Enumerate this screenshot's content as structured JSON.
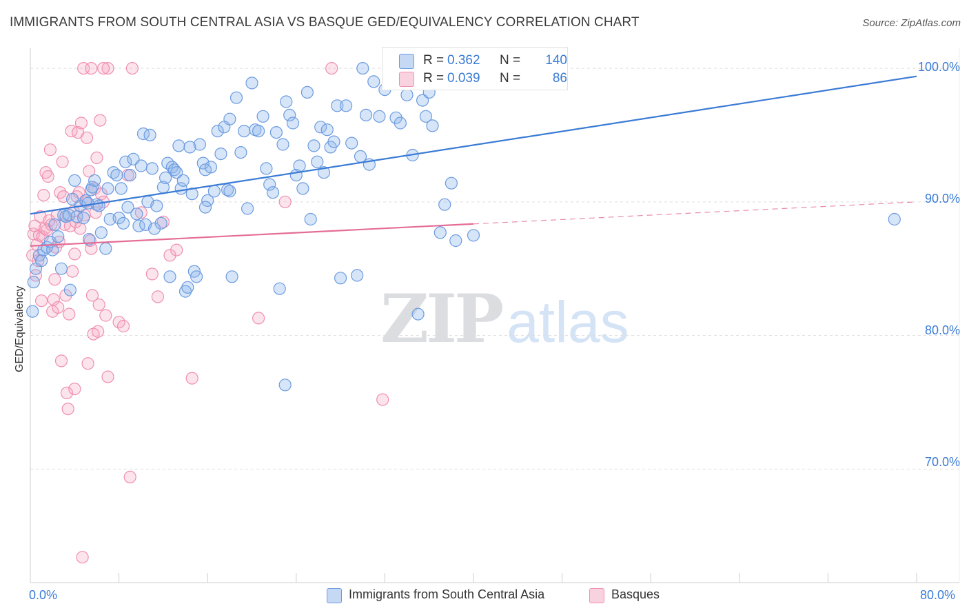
{
  "title": "IMMIGRANTS FROM SOUTH CENTRAL ASIA VS BASQUE GED/EQUIVALENCY CORRELATION CHART",
  "source_prefix": "Source: ",
  "source_name": "ZipAtlas.com",
  "watermark": {
    "zip": "ZIP",
    "atlas": "atlas"
  },
  "legend_top": {
    "rows": [
      {
        "r_label": "R =",
        "r_value": "0.362",
        "n_label": "N =",
        "n_value": "140",
        "color": "#8db4ea"
      },
      {
        "r_label": "R =",
        "r_value": "0.039",
        "n_label": "N =",
        "n_value": "86",
        "color": "#f4a5bf"
      }
    ]
  },
  "legend_bottom": [
    {
      "label": "Immigrants from South Central Asia",
      "color": "#8db4ea"
    },
    {
      "label": "Basques",
      "color": "#f4a5bf"
    }
  ],
  "colors": {
    "blue_stroke": "#6b9be0",
    "blue_fill": "rgba(141,180,234,0.35)",
    "blue_line": "#3a7bd5",
    "pink_stroke": "#f08fb0",
    "pink_fill": "rgba(244,165,191,0.30)",
    "pink_line": "#e46d97",
    "grid": "#dddddd",
    "tick_text": "#3a7bd5"
  },
  "chart_data": {
    "type": "scatter",
    "title": "IMMIGRANTS FROM SOUTH CENTRAL ASIA VS BASQUE GED/EQUIVALENCY CORRELATION CHART",
    "xlabel": "",
    "ylabel": "GED/Equivalency",
    "xlim": [
      0,
      80
    ],
    "ylim": [
      61.5,
      101.5
    ],
    "x_tick_labels": [
      {
        "value": 0,
        "label": "0.0%"
      },
      {
        "value": 80,
        "label": "80.0%"
      }
    ],
    "y_tick_labels": [
      {
        "value": 100,
        "label": "100.0%"
      },
      {
        "value": 90,
        "label": "90.0%"
      },
      {
        "value": 80,
        "label": "80.0%"
      },
      {
        "value": 70,
        "label": "70.0%"
      }
    ],
    "legend_position": "top-center",
    "grid": true,
    "series": [
      {
        "name": "Immigrants from South Central Asia",
        "r": 0.362,
        "n": 140,
        "trend": {
          "x": [
            0,
            80
          ],
          "y": [
            89.1,
            99.4
          ],
          "dashed_after": null
        },
        "points": [
          [
            0.2,
            81.8
          ],
          [
            0.3,
            84.0
          ],
          [
            0.5,
            85.0
          ],
          [
            0.8,
            86.0
          ],
          [
            1.0,
            85.6
          ],
          [
            1.2,
            86.4
          ],
          [
            1.5,
            86.6
          ],
          [
            1.8,
            87.0
          ],
          [
            2.0,
            86.4
          ],
          [
            2.2,
            88.3
          ],
          [
            2.5,
            87.4
          ],
          [
            2.8,
            85.0
          ],
          [
            3.0,
            89.0
          ],
          [
            3.2,
            88.9
          ],
          [
            3.5,
            89.0
          ],
          [
            3.6,
            83.4
          ],
          [
            3.8,
            90.2
          ],
          [
            4.0,
            91.6
          ],
          [
            4.2,
            88.9
          ],
          [
            4.5,
            89.7
          ],
          [
            4.8,
            88.8
          ],
          [
            5.0,
            90.1
          ],
          [
            5.2,
            89.9
          ],
          [
            5.3,
            87.2
          ],
          [
            5.5,
            90.9
          ],
          [
            5.6,
            91.1
          ],
          [
            5.8,
            91.6
          ],
          [
            6.0,
            89.8
          ],
          [
            6.2,
            89.7
          ],
          [
            6.4,
            87.7
          ],
          [
            6.8,
            86.5
          ],
          [
            7.0,
            91.0
          ],
          [
            7.2,
            88.7
          ],
          [
            7.5,
            92.2
          ],
          [
            7.8,
            92.0
          ],
          [
            8.0,
            88.8
          ],
          [
            8.2,
            91.0
          ],
          [
            8.4,
            88.4
          ],
          [
            8.6,
            93.0
          ],
          [
            8.8,
            89.6
          ],
          [
            9.0,
            92.0
          ],
          [
            9.3,
            93.2
          ],
          [
            9.6,
            89.1
          ],
          [
            9.8,
            88.2
          ],
          [
            10.0,
            92.7
          ],
          [
            10.2,
            95.1
          ],
          [
            10.4,
            88.3
          ],
          [
            10.6,
            90.0
          ],
          [
            10.8,
            95.0
          ],
          [
            11.0,
            92.5
          ],
          [
            11.2,
            88.0
          ],
          [
            11.4,
            89.7
          ],
          [
            11.8,
            88.4
          ],
          [
            12.0,
            91.1
          ],
          [
            12.2,
            91.8
          ],
          [
            12.4,
            92.9
          ],
          [
            12.6,
            84.4
          ],
          [
            12.8,
            92.6
          ],
          [
            13.0,
            92.4
          ],
          [
            13.2,
            92.2
          ],
          [
            13.4,
            94.2
          ],
          [
            13.6,
            91.0
          ],
          [
            13.8,
            91.6
          ],
          [
            14.0,
            83.3
          ],
          [
            14.2,
            83.6
          ],
          [
            14.4,
            94.1
          ],
          [
            14.6,
            90.6
          ],
          [
            14.8,
            84.8
          ],
          [
            15.0,
            84.4
          ],
          [
            15.3,
            94.3
          ],
          [
            15.6,
            92.9
          ],
          [
            15.8,
            92.4
          ],
          [
            16.0,
            90.1
          ],
          [
            16.3,
            92.6
          ],
          [
            16.6,
            90.8
          ],
          [
            16.9,
            95.3
          ],
          [
            17.2,
            93.6
          ],
          [
            17.5,
            95.6
          ],
          [
            17.8,
            90.9
          ],
          [
            18.0,
            90.8
          ],
          [
            18.2,
            84.4
          ],
          [
            18.6,
            97.8
          ],
          [
            19.0,
            93.7
          ],
          [
            19.3,
            95.3
          ],
          [
            19.6,
            89.5
          ],
          [
            20.0,
            98.9
          ],
          [
            20.3,
            95.4
          ],
          [
            20.6,
            95.3
          ],
          [
            21.0,
            96.4
          ],
          [
            21.3,
            92.5
          ],
          [
            21.6,
            91.3
          ],
          [
            21.9,
            90.7
          ],
          [
            22.2,
            95.2
          ],
          [
            22.5,
            83.5
          ],
          [
            22.8,
            94.3
          ],
          [
            23.1,
            97.5
          ],
          [
            23.4,
            96.5
          ],
          [
            23.7,
            95.9
          ],
          [
            24.0,
            92.0
          ],
          [
            24.3,
            92.7
          ],
          [
            24.6,
            91.0
          ],
          [
            25.0,
            98.2
          ],
          [
            25.3,
            88.7
          ],
          [
            25.6,
            94.2
          ],
          [
            25.9,
            93.0
          ],
          [
            26.2,
            95.6
          ],
          [
            26.5,
            92.2
          ],
          [
            26.8,
            95.4
          ],
          [
            27.1,
            94.1
          ],
          [
            27.4,
            94.5
          ],
          [
            27.7,
            97.2
          ],
          [
            28.0,
            84.3
          ],
          [
            28.5,
            97.2
          ],
          [
            29.0,
            94.4
          ],
          [
            29.5,
            84.5
          ],
          [
            29.8,
            93.4
          ],
          [
            30.0,
            100.0
          ],
          [
            30.3,
            96.5
          ],
          [
            30.6,
            92.8
          ],
          [
            31.0,
            99.0
          ],
          [
            31.5,
            96.4
          ],
          [
            32.0,
            98.4
          ],
          [
            33.0,
            96.3
          ],
          [
            33.4,
            95.9
          ],
          [
            34.0,
            98.0
          ],
          [
            34.5,
            93.5
          ],
          [
            35.0,
            81.6
          ],
          [
            35.4,
            97.6
          ],
          [
            35.7,
            96.4
          ],
          [
            36.0,
            98.2
          ],
          [
            36.3,
            95.7
          ],
          [
            37.0,
            87.7
          ],
          [
            37.4,
            89.8
          ],
          [
            38.0,
            91.4
          ],
          [
            38.4,
            87.1
          ],
          [
            40.0,
            87.5
          ],
          [
            78.0,
            88.7
          ],
          [
            23.0,
            76.3
          ],
          [
            18.0,
            96.2
          ],
          [
            15.8,
            89.6
          ]
        ]
      },
      {
        "name": "Basques",
        "r": 0.039,
        "n": 86,
        "trend": {
          "x": [
            0,
            80
          ],
          "y": [
            86.7,
            90.0
          ],
          "dashed_after": 40
        },
        "points": [
          [
            0.2,
            86.0
          ],
          [
            0.3,
            87.6
          ],
          [
            0.4,
            88.2
          ],
          [
            0.5,
            84.5
          ],
          [
            0.6,
            86.8
          ],
          [
            0.7,
            85.6
          ],
          [
            0.8,
            87.5
          ],
          [
            0.9,
            88.9
          ],
          [
            1.0,
            82.6
          ],
          [
            1.1,
            87.4
          ],
          [
            1.2,
            90.5
          ],
          [
            1.3,
            88.0
          ],
          [
            1.4,
            92.2
          ],
          [
            1.5,
            87.9
          ],
          [
            1.6,
            91.9
          ],
          [
            1.7,
            88.6
          ],
          [
            1.8,
            93.9
          ],
          [
            1.9,
            88.3
          ],
          [
            2.0,
            81.8
          ],
          [
            2.1,
            82.7
          ],
          [
            2.2,
            84.2
          ],
          [
            2.3,
            86.6
          ],
          [
            2.4,
            89.0
          ],
          [
            2.5,
            82.1
          ],
          [
            2.6,
            87.0
          ],
          [
            2.7,
            90.7
          ],
          [
            2.8,
            78.1
          ],
          [
            2.9,
            93.0
          ],
          [
            3.0,
            90.4
          ],
          [
            3.1,
            88.3
          ],
          [
            3.2,
            83.0
          ],
          [
            3.3,
            75.7
          ],
          [
            3.4,
            74.5
          ],
          [
            3.5,
            81.6
          ],
          [
            3.6,
            88.2
          ],
          [
            3.7,
            95.3
          ],
          [
            3.8,
            84.8
          ],
          [
            3.9,
            89.3
          ],
          [
            4.0,
            76.0
          ],
          [
            4.1,
            88.5
          ],
          [
            4.2,
            90.4
          ],
          [
            4.3,
            95.2
          ],
          [
            4.4,
            90.7
          ],
          [
            4.5,
            88.0
          ],
          [
            4.6,
            95.9
          ],
          [
            4.7,
            63.4
          ],
          [
            4.8,
            100.0
          ],
          [
            4.9,
            89.0
          ],
          [
            5.0,
            90.0
          ],
          [
            5.1,
            94.8
          ],
          [
            5.2,
            77.9
          ],
          [
            5.3,
            92.3
          ],
          [
            5.4,
            87.1
          ],
          [
            5.5,
            86.5
          ],
          [
            5.6,
            83.0
          ],
          [
            5.7,
            80.1
          ],
          [
            5.8,
            91.0
          ],
          [
            5.9,
            89.2
          ],
          [
            6.0,
            93.3
          ],
          [
            6.1,
            80.3
          ],
          [
            6.2,
            82.3
          ],
          [
            6.3,
            96.1
          ],
          [
            6.4,
            90.6
          ],
          [
            6.6,
            90.0
          ],
          [
            6.8,
            81.5
          ],
          [
            7.0,
            76.9
          ],
          [
            8.0,
            81.0
          ],
          [
            8.4,
            80.7
          ],
          [
            8.8,
            92.0
          ],
          [
            9.2,
            100.0
          ],
          [
            10.0,
            89.2
          ],
          [
            11.0,
            84.6
          ],
          [
            11.5,
            82.9
          ],
          [
            12.0,
            88.5
          ],
          [
            12.6,
            86.0
          ],
          [
            13.2,
            86.4
          ],
          [
            14.6,
            76.8
          ],
          [
            20.6,
            81.3
          ],
          [
            23.0,
            90.0
          ],
          [
            27.2,
            100.0
          ],
          [
            31.8,
            75.2
          ],
          [
            5.5,
            100.0
          ],
          [
            7.0,
            100.0
          ],
          [
            9.0,
            69.4
          ],
          [
            4.0,
            86.1
          ],
          [
            6.6,
            100.0
          ]
        ]
      }
    ]
  },
  "axis_labels": {
    "y": "GED/Equivalency",
    "x_left": "0.0%",
    "x_right": "80.0%",
    "y_ticks": [
      "100.0%",
      "90.0%",
      "80.0%",
      "70.0%"
    ]
  }
}
